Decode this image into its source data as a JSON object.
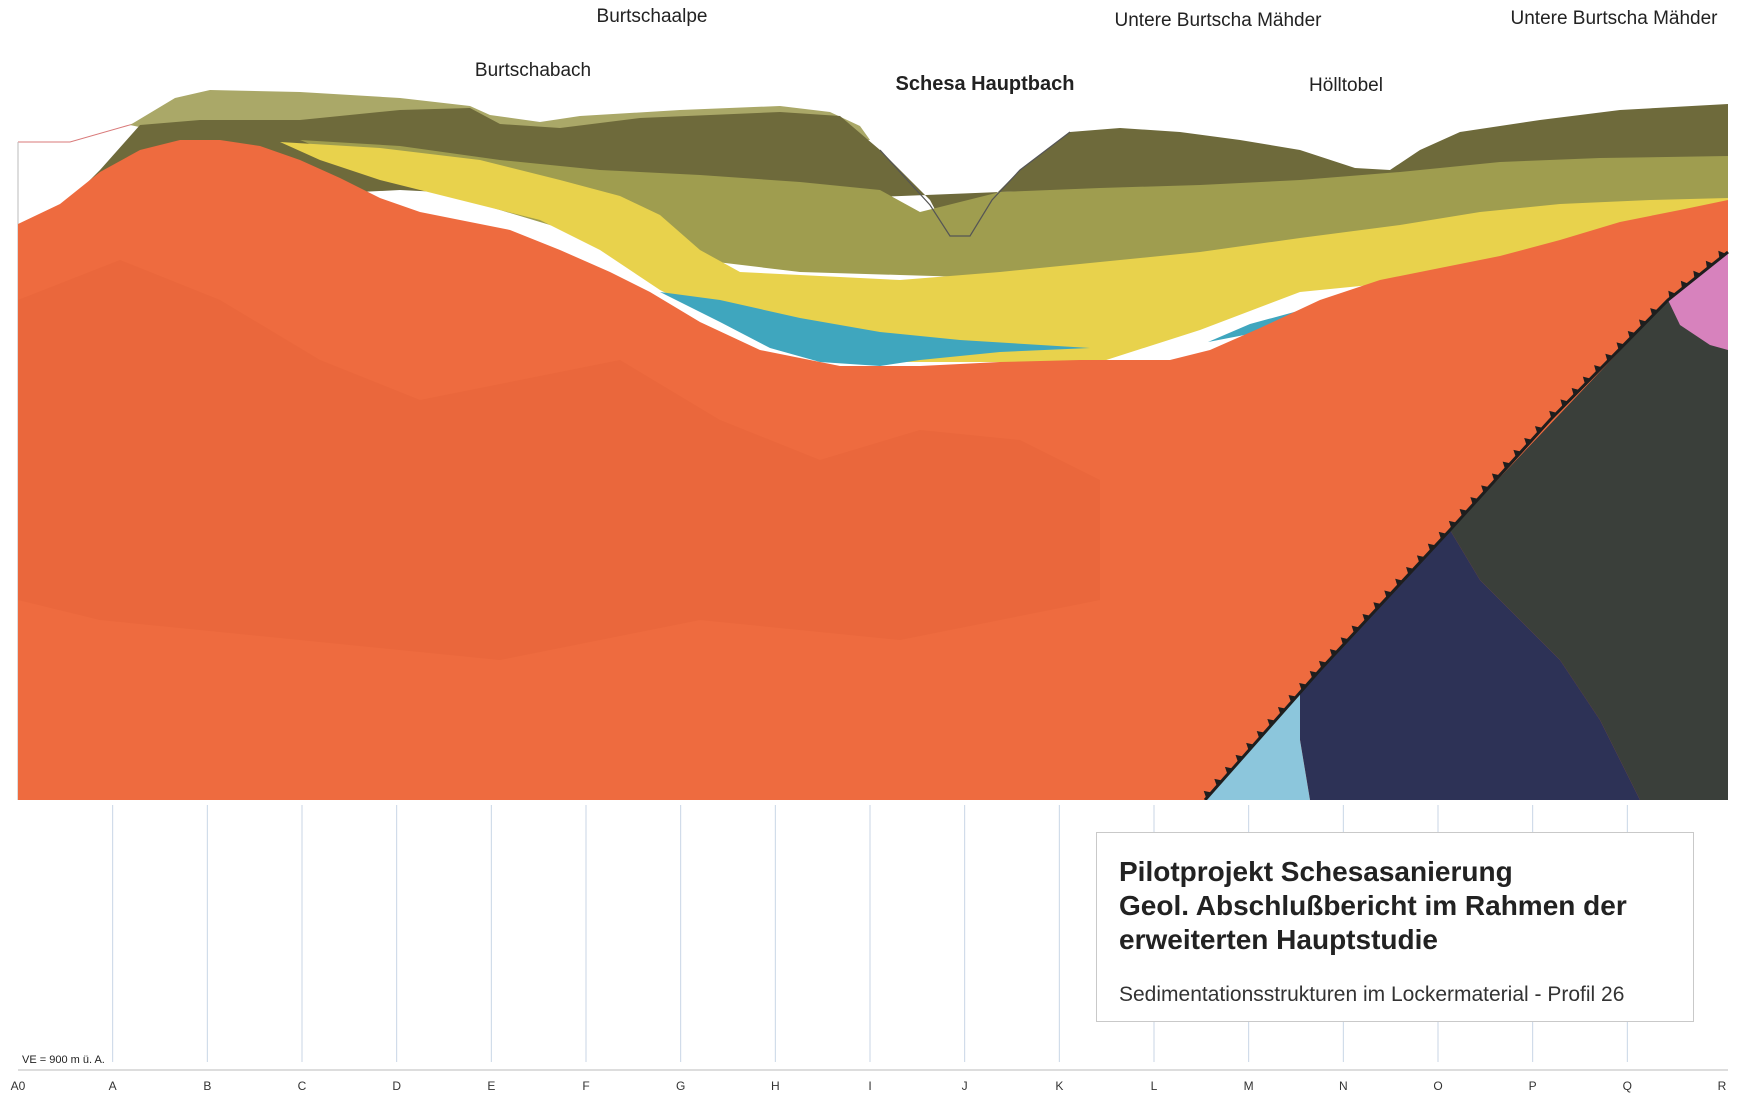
{
  "colors": {
    "orange": "#ee6b3f",
    "yellow": "#e8d24c",
    "olive_light": "#9f9d4f",
    "olive_dark": "#6e6a3b",
    "olive_top": "#aaa868",
    "cyan": "#3fa6be",
    "light_blue": "#8cc6dc",
    "navy": "#2d3256",
    "dark_gray": "#3a3f3a",
    "pink": "#d782bd"
  },
  "places": {
    "burtschaalpe": "Burtschaalpe",
    "burtschabach": "Burtschabach",
    "schesa_hauptbach": "Schesa Hauptbach",
    "untere_1": "Untere Burtscha Mähder",
    "untere_2": "Untere Burtscha Mähder",
    "hoelltobel": "Hölltobel"
  },
  "scale_note": "VE = 900 m ü. A.",
  "ticks": [
    "A0",
    "A",
    "B",
    "C",
    "D",
    "E",
    "F",
    "G",
    "H",
    "I",
    "J",
    "K",
    "L",
    "M",
    "N",
    "O",
    "P",
    "Q",
    "R"
  ],
  "title_box": {
    "line1": "Pilotprojekt Schesasanierung",
    "line2": "Geol. Abschlußbericht im Rahmen der",
    "line3": "erweiterten Hauptstudie",
    "subtitle": "Sedimentationsstrukturen im Lockermaterial - Profil 26"
  }
}
